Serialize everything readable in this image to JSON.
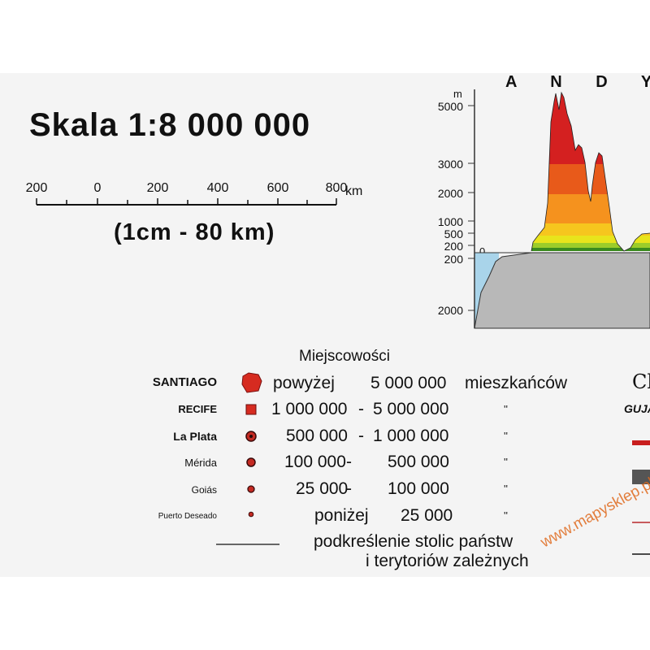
{
  "scale": {
    "title": "Skala 1:8 000 000",
    "ticks": [
      "200",
      "0",
      "200",
      "400",
      "600",
      "800"
    ],
    "unit": "km",
    "subtitle": "(1cm - 80 km)"
  },
  "profile": {
    "title": "A N D Y",
    "unit": "m",
    "elevation_labels": [
      "5000",
      "3000",
      "2000",
      "1000",
      "500",
      "200",
      "0"
    ],
    "depth_labels": [
      "200",
      "2000"
    ],
    "colors": [
      "#d42020",
      "#e85a1a",
      "#f5921e",
      "#f6c61e",
      "#e8e41c",
      "#9ccc2a",
      "#3a8a1e"
    ],
    "sea_color": "#a9d4ea",
    "seafloor_color": "#b8b8b8"
  },
  "legend": {
    "title": "Miejscowości",
    "rows": [
      {
        "name": "SANTIAGO",
        "prefix": "powyżej",
        "from": "5 000 000",
        "to": "",
        "unit": "mieszkańców",
        "symbol": "city-polygon"
      },
      {
        "name": "RECIFE",
        "prefix": "",
        "from": "1 000 000",
        "to": "5 000 000",
        "unit": "''",
        "symbol": "square"
      },
      {
        "name": "La Plata",
        "prefix": "",
        "from": "500 000",
        "to": "1 000 000",
        "unit": "''",
        "symbol": "circle-dot"
      },
      {
        "name": "Mérida",
        "prefix": "",
        "from": "100 000",
        "to": "500 000",
        "unit": "''",
        "symbol": "circle"
      },
      {
        "name": "Goiás",
        "prefix": "",
        "from": "25 000",
        "to": "100 000",
        "unit": "''",
        "symbol": "circle"
      },
      {
        "name": "Puerto Deseado",
        "prefix": "poniżej",
        "from": "25 000",
        "to": "",
        "unit": "''",
        "symbol": "small-circle"
      }
    ],
    "capital_note_line1": "podkreślenie stolic państw",
    "capital_note_line2": "i terytoriów zależnych",
    "dash": "-"
  },
  "edge": {
    "cl": "Cl",
    "guja": "GUJA"
  },
  "watermark": "www.mapysklep.pl"
}
